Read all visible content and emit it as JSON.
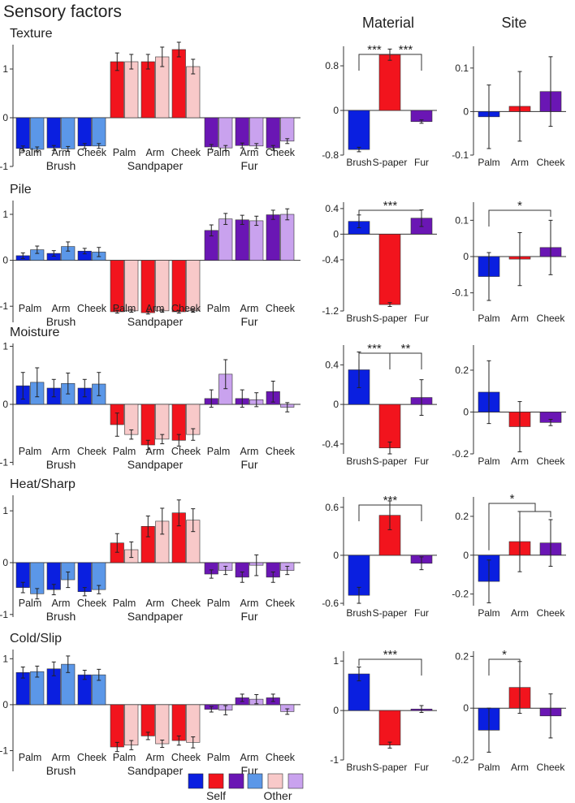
{
  "title": "Sensory factors",
  "column_titles": [
    "Material",
    "Site"
  ],
  "colors": {
    "brush_self": "#0a1fe0",
    "sandpaper_self": "#f2141d",
    "fur_self": "#6a16b4",
    "brush_other": "#5b97e8",
    "sandpaper_other": "#f8c9c9",
    "fur_other": "#c9a2ee"
  },
  "legend": {
    "self_label": "Self",
    "other_label": "Other"
  },
  "chart_data": [
    {
      "type": "bar",
      "factor": "Texture",
      "ylim": [
        -1,
        1.5
      ],
      "detail": {
        "subcats": [
          "Palm",
          "Arm",
          "Cheek"
        ],
        "groups": [
          "Brush",
          "Sandpaper",
          "Fur"
        ],
        "ticks": [
          -1,
          0,
          1
        ],
        "series": [
          {
            "name": "Brush Self",
            "values": [
              -0.63,
              -0.62,
              -0.58
            ],
            "errors": [
              0.05,
              0.05,
              0.05
            ]
          },
          {
            "name": "Brush Other",
            "values": [
              -0.65,
              -0.64,
              -0.58
            ],
            "errors": [
              0.05,
              0.05,
              0.05
            ]
          },
          {
            "name": "Sandpaper Self",
            "values": [
              1.15,
              1.15,
              1.4
            ],
            "errors": [
              0.18,
              0.15,
              0.15
            ]
          },
          {
            "name": "Sandpaper Other",
            "values": [
              1.15,
              1.25,
              1.05
            ],
            "errors": [
              0.15,
              0.2,
              0.15
            ]
          },
          {
            "name": "Fur Self",
            "values": [
              -0.6,
              -0.57,
              -0.62
            ],
            "errors": [
              0.05,
              0.05,
              0.05
            ]
          },
          {
            "name": "Fur Other",
            "values": [
              -0.62,
              -0.58,
              -0.48
            ],
            "errors": [
              0.05,
              0.05,
              0.05
            ]
          }
        ]
      },
      "material": {
        "categories": [
          "Brush",
          "S-paper",
          "Fur"
        ],
        "values": [
          -0.7,
          1.0,
          -0.2
        ],
        "errors": [
          0.04,
          0.1,
          0.03
        ],
        "ylim": [
          -0.8,
          1.15
        ],
        "ticks": [
          "-0.8",
          "0",
          "0.8"
        ],
        "sig": [
          {
            "from": 0,
            "to": 1,
            "label": "***"
          },
          {
            "from": 1,
            "to": 2,
            "label": "***"
          }
        ]
      },
      "site": {
        "categories": [
          "Palm",
          "Arm",
          "Cheek"
        ],
        "values": [
          -0.012,
          0.012,
          0.046
        ],
        "errors": [
          0.073,
          0.08,
          0.08
        ],
        "ylim": [
          -0.1,
          0.15
        ],
        "ticks": [
          "-0.1",
          "0",
          "0.1"
        ],
        "sig": []
      }
    },
    {
      "type": "bar",
      "factor": "Pile",
      "ylim": [
        -1.35,
        1.3
      ],
      "detail": {
        "subcats": [
          "Palm",
          "Arm",
          "Cheek"
        ],
        "groups": [
          "Brush",
          "Sandpaper",
          "Fur"
        ],
        "ticks": [
          -1,
          0,
          1
        ],
        "series": [
          {
            "name": "Brush Self",
            "values": [
              0.1,
              0.15,
              0.2
            ],
            "errors": [
              0.06,
              0.06,
              0.06
            ]
          },
          {
            "name": "Brush Other",
            "values": [
              0.23,
              0.3,
              0.18
            ],
            "errors": [
              0.08,
              0.1,
              0.1
            ]
          },
          {
            "name": "Sandpaper Self",
            "values": [
              -1.12,
              -1.14,
              -1.12
            ],
            "errors": [
              0.03,
              0.03,
              0.03
            ]
          },
          {
            "name": "Sandpaper Other",
            "values": [
              -1.1,
              -1.1,
              -1.1
            ],
            "errors": [
              0.03,
              0.03,
              0.03
            ]
          },
          {
            "name": "Fur Self",
            "values": [
              0.65,
              0.88,
              0.99
            ],
            "errors": [
              0.12,
              0.1,
              0.1
            ]
          },
          {
            "name": "Fur Other",
            "values": [
              0.9,
              0.86,
              1.0
            ],
            "errors": [
              0.12,
              0.1,
              0.12
            ]
          }
        ]
      },
      "material": {
        "categories": [
          "Brush",
          "S-paper",
          "Fur"
        ],
        "values": [
          0.2,
          -1.1,
          0.25
        ],
        "errors": [
          0.1,
          0.03,
          0.13
        ],
        "ylim": [
          -1.2,
          0.5
        ],
        "ticks": [
          "-1.2",
          "-0.4",
          "0",
          "0.4"
        ],
        "sig": [
          {
            "from": 0,
            "to": 2,
            "label": "***"
          }
        ]
      },
      "site": {
        "categories": [
          "Palm",
          "Arm",
          "Cheek"
        ],
        "values": [
          -0.055,
          -0.007,
          0.025
        ],
        "errors": [
          0.066,
          0.073,
          0.075
        ],
        "ylim": [
          -0.15,
          0.15
        ],
        "ticks": [
          "-0.1",
          "0",
          "0.1"
        ],
        "sig": [
          {
            "from": 0,
            "to": 2,
            "label": "*"
          }
        ]
      }
    },
    {
      "type": "bar",
      "factor": "Moisture",
      "ylim": [
        -1.05,
        1.05
      ],
      "detail": {
        "subcats": [
          "Palm",
          "Arm",
          "Cheek"
        ],
        "groups": [
          "Brush",
          "Sandpaper",
          "Fur"
        ],
        "ticks": [
          -1,
          0,
          1
        ],
        "series": [
          {
            "name": "Brush Self",
            "values": [
              0.32,
              0.28,
              0.28
            ],
            "errors": [
              0.23,
              0.15,
              0.15
            ]
          },
          {
            "name": "Brush Other",
            "values": [
              0.38,
              0.36,
              0.35
            ],
            "errors": [
              0.25,
              0.18,
              0.2
            ]
          },
          {
            "name": "Sandpaper Self",
            "values": [
              -0.35,
              -0.7,
              -0.62
            ],
            "errors": [
              0.2,
              0.08,
              0.1
            ]
          },
          {
            "name": "Sandpaper Other",
            "values": [
              -0.52,
              -0.6,
              -0.52
            ],
            "errors": [
              0.08,
              0.08,
              0.1
            ]
          },
          {
            "name": "Fur Self",
            "values": [
              0.1,
              0.1,
              0.22
            ],
            "errors": [
              0.15,
              0.15,
              0.18
            ]
          },
          {
            "name": "Fur Other",
            "values": [
              0.52,
              0.08,
              -0.05
            ],
            "errors": [
              0.25,
              0.12,
              0.08
            ]
          }
        ]
      },
      "material": {
        "categories": [
          "Brush",
          "S-paper",
          "Fur"
        ],
        "values": [
          0.35,
          -0.44,
          0.07
        ],
        "errors": [
          0.18,
          0.06,
          0.18
        ],
        "ylim": [
          -0.5,
          0.6
        ],
        "ticks": [
          "-0.4",
          "0",
          "0.4"
        ],
        "sig": [
          {
            "from": 0,
            "to": 1,
            "label": "***"
          },
          {
            "from": 1,
            "to": 2,
            "label": "**"
          }
        ]
      },
      "site": {
        "categories": [
          "Palm",
          "Arm",
          "Cheek"
        ],
        "values": [
          0.095,
          -0.07,
          -0.05
        ],
        "errors": [
          0.15,
          0.12,
          0.015
        ],
        "ylim": [
          -0.2,
          0.32
        ],
        "ticks": [
          "-0.2",
          "0",
          "0.2"
        ],
        "sig": []
      }
    },
    {
      "type": "bar",
      "factor": "Heat/Sharp",
      "ylim": [
        -1.05,
        1.3
      ],
      "detail": {
        "subcats": [
          "Palm",
          "Arm",
          "Cheek"
        ],
        "groups": [
          "Brush",
          "Sandpaper",
          "Fur"
        ],
        "ticks": [
          -1,
          0,
          1
        ],
        "series": [
          {
            "name": "Brush Self",
            "values": [
              -0.48,
              -0.52,
              -0.56
            ],
            "errors": [
              0.1,
              0.1,
              0.08
            ]
          },
          {
            "name": "Brush Other",
            "values": [
              -0.6,
              -0.33,
              -0.52
            ],
            "errors": [
              0.1,
              0.15,
              0.08
            ]
          },
          {
            "name": "Sandpaper Self",
            "values": [
              0.38,
              0.7,
              0.96
            ],
            "errors": [
              0.18,
              0.2,
              0.25
            ]
          },
          {
            "name": "Sandpaper Other",
            "values": [
              0.25,
              0.8,
              0.82
            ],
            "errors": [
              0.15,
              0.25,
              0.22
            ]
          },
          {
            "name": "Fur Self",
            "values": [
              -0.22,
              -0.28,
              -0.28
            ],
            "errors": [
              0.08,
              0.1,
              0.1
            ]
          },
          {
            "name": "Fur Other",
            "values": [
              -0.15,
              -0.05,
              -0.15
            ],
            "errors": [
              0.08,
              0.2,
              0.08
            ]
          }
        ]
      },
      "material": {
        "categories": [
          "Brush",
          "S-paper",
          "Fur"
        ],
        "values": [
          -0.5,
          0.5,
          -0.1
        ],
        "errors": [
          0.1,
          0.18,
          0.08
        ],
        "ylim": [
          -0.63,
          0.73
        ],
        "ticks": [
          "-0.6",
          "0",
          "0.6"
        ],
        "sig": [
          {
            "from": 0,
            "to": 2,
            "label": "***"
          }
        ]
      },
      "site": {
        "categories": [
          "Palm",
          "Arm",
          "Cheek"
        ],
        "values": [
          -0.135,
          0.07,
          0.063
        ],
        "errors": [
          0.11,
          0.155,
          0.12
        ],
        "ylim": [
          -0.26,
          0.3
        ],
        "ticks": [
          "-0.2",
          "0",
          "0.2"
        ],
        "sig": [
          {
            "from": 0,
            "to": "1-2",
            "label": "*"
          }
        ]
      }
    },
    {
      "type": "bar",
      "factor": "Cold/Slip",
      "ylim": [
        -1.45,
        1.2
      ],
      "detail": {
        "subcats": [
          "Palm",
          "Arm",
          "Cheek"
        ],
        "groups": [
          "Brush",
          "Sandpaper",
          "Fur"
        ],
        "ticks": [
          -1,
          0,
          1
        ],
        "series": [
          {
            "name": "Brush Self",
            "values": [
              0.7,
              0.78,
              0.65
            ],
            "errors": [
              0.12,
              0.15,
              0.1
            ]
          },
          {
            "name": "Brush Other",
            "values": [
              0.72,
              0.88,
              0.65
            ],
            "errors": [
              0.12,
              0.18,
              0.12
            ]
          },
          {
            "name": "Sandpaper Self",
            "values": [
              -0.92,
              -0.68,
              -0.78
            ],
            "errors": [
              0.1,
              0.08,
              0.1
            ]
          },
          {
            "name": "Sandpaper Other",
            "values": [
              -0.88,
              -0.85,
              -0.82
            ],
            "errors": [
              0.1,
              0.08,
              0.12
            ]
          },
          {
            "name": "Fur Self",
            "values": [
              -0.1,
              0.15,
              0.15
            ],
            "errors": [
              0.06,
              0.08,
              0.08
            ]
          },
          {
            "name": "Fur Other",
            "values": [
              -0.12,
              0.12,
              -0.15
            ],
            "errors": [
              0.1,
              0.1,
              0.06
            ]
          }
        ]
      },
      "material": {
        "categories": [
          "Brush",
          "S-paper",
          "Fur"
        ],
        "values": [
          0.74,
          -0.7,
          0.03
        ],
        "errors": [
          0.14,
          0.06,
          0.07
        ],
        "ylim": [
          -1.0,
          1.2
        ],
        "ticks": [
          "-1",
          "0",
          "1"
        ],
        "sig": [
          {
            "from": 0,
            "to": 2,
            "label": "***"
          }
        ]
      },
      "site": {
        "categories": [
          "Palm",
          "Arm",
          "Cheek"
        ],
        "values": [
          -0.085,
          0.08,
          -0.03
        ],
        "errors": [
          0.085,
          0.1,
          0.085
        ],
        "ylim": [
          -0.2,
          0.22
        ],
        "ticks": [
          "-0.2",
          "0",
          "0.2"
        ],
        "sig": [
          {
            "from": 0,
            "to": 1,
            "label": "*"
          }
        ]
      }
    }
  ]
}
